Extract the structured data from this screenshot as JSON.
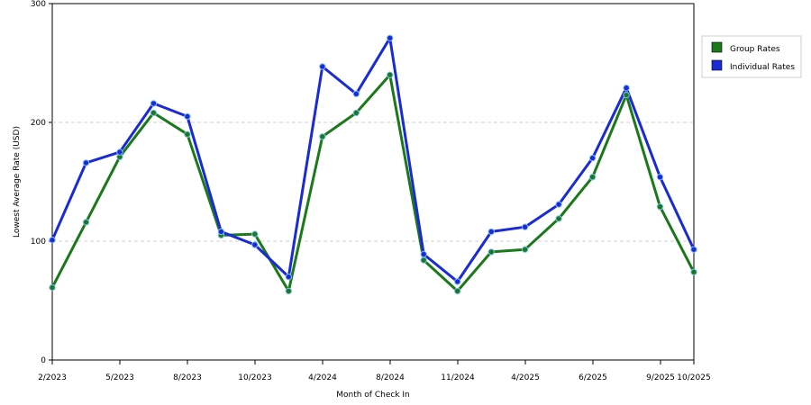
{
  "chart_data": {
    "type": "line",
    "title": "",
    "xlabel": "Month of Check In",
    "ylabel": "Lowest Average Rate (USD)",
    "ylim": [
      0,
      300
    ],
    "yticks": [
      0,
      100,
      200,
      300
    ],
    "grid": "horizontal dashed",
    "legend_placement": "right",
    "x_tick_labels": [
      "2/2023",
      "5/2023",
      "8/2023",
      "10/2023",
      "4/2024",
      "8/2024",
      "11/2024",
      "4/2025",
      "6/2025",
      "9/2025",
      "10/2025"
    ],
    "series": [
      {
        "name": "Group Rates",
        "color": "#1a7a1a",
        "values": [
          61,
          116,
          171,
          208,
          190,
          105,
          106,
          58,
          188,
          208,
          240,
          84,
          58,
          91,
          93,
          119,
          154,
          223,
          129,
          74
        ]
      },
      {
        "name": "Individual Rates",
        "color": "#1a2bd6",
        "values": [
          101,
          166,
          175,
          216,
          205,
          108,
          97,
          70,
          247,
          224,
          271,
          89,
          66,
          108,
          112,
          131,
          170,
          229,
          154,
          93
        ]
      }
    ]
  }
}
